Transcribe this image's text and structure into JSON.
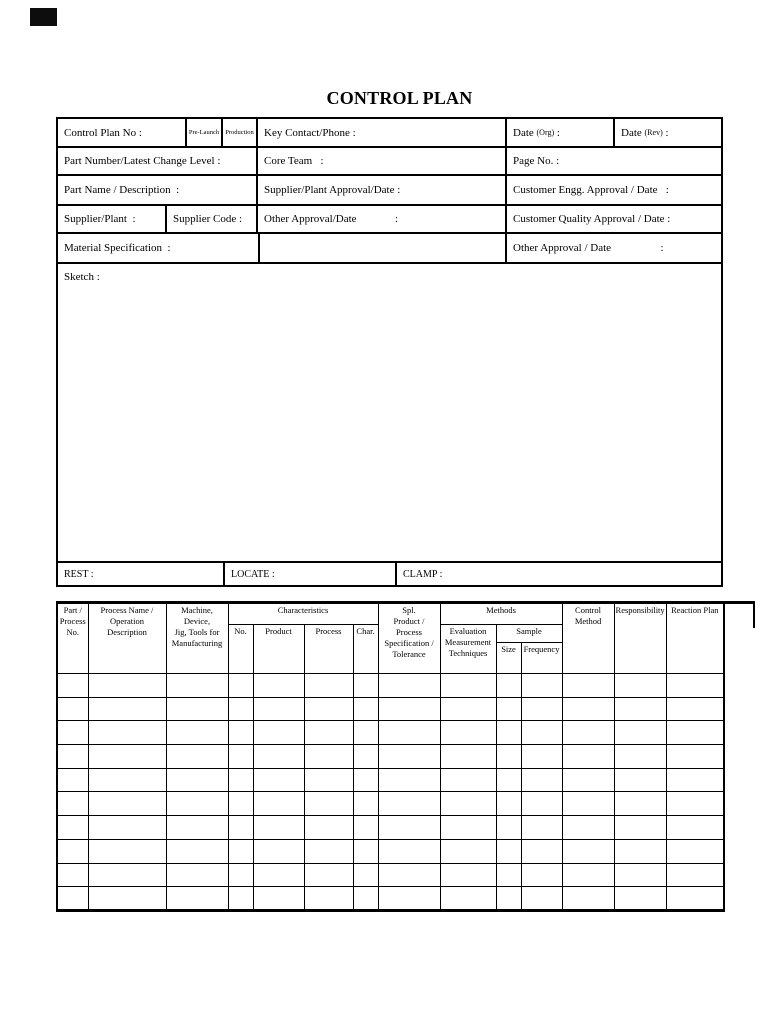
{
  "title": "CONTROL PLAN",
  "colors": {
    "ink": "#000000",
    "paper": "#ffffff"
  },
  "form": {
    "control_plan_no": "Control Plan No :",
    "pre_launch": "Pre-Launch",
    "production": "Production",
    "key_contact": "Key Contact/Phone :",
    "date_org": {
      "text": "Date ",
      "small": "(Org)",
      "colon": " :"
    },
    "date_rev": {
      "text": "Date ",
      "small": "(Rev)",
      "colon": " :"
    },
    "part_number": "Part Number/Latest Change Level :",
    "core_team": "Core Team   :",
    "page_no": "Page No. :",
    "part_name": "Part Name / Description  :",
    "supplier_plant_approval": "Supplier/Plant Approval/Date :",
    "customer_engg_approval": "Customer Engg. Approval / Date   :",
    "supplier_plant": "Supplier/Plant  :",
    "supplier_code": "Supplier Code :",
    "other_approval_date": "Other Approval/Date              :",
    "customer_quality_approval": "Customer Quality Approval / Date :",
    "material_specification": "Material Specification  :",
    "other_approval_date2": "Other Approval / Date                  :",
    "sketch": "Sketch :"
  },
  "rest_row": {
    "rest": "REST :",
    "locate": "LOCATE :",
    "clamp": "CLAMP :"
  },
  "main_table": {
    "headers": {
      "part_process_no": "Part /\nProcess\nNo.",
      "process_name": "Process Name /\nOperation Description",
      "machine": "Machine, Device,\nJig, Tools for\nManufacturing",
      "characteristics": "Characteristics",
      "no": "No.",
      "product": "Product",
      "process": "Process",
      "char": "Char.",
      "spl": "Spl.\nProduct / Process\nSpecification /\nTolerance",
      "methods": "Methods",
      "evaluation": "Evaluation\nMeasurement\nTechniques",
      "sample": "Sample",
      "size": "Size",
      "frequency": "Frequency",
      "control_method": "Control\nMethod",
      "responsibility": "Responsibility",
      "reaction_plan": "Reaction Plan"
    },
    "rows": [
      [
        "",
        "",
        "",
        "",
        "",
        "",
        "",
        "",
        "",
        "",
        "",
        "",
        "",
        ""
      ],
      [
        "",
        "",
        "",
        "",
        "",
        "",
        "",
        "",
        "",
        "",
        "",
        "",
        "",
        ""
      ],
      [
        "",
        "",
        "",
        "",
        "",
        "",
        "",
        "",
        "",
        "",
        "",
        "",
        "",
        ""
      ],
      [
        "",
        "",
        "",
        "",
        "",
        "",
        "",
        "",
        "",
        "",
        "",
        "",
        "",
        ""
      ],
      [
        "",
        "",
        "",
        "",
        "",
        "",
        "",
        "",
        "",
        "",
        "",
        "",
        "",
        ""
      ],
      [
        "",
        "",
        "",
        "",
        "",
        "",
        "",
        "",
        "",
        "",
        "",
        "",
        "",
        ""
      ],
      [
        "",
        "",
        "",
        "",
        "",
        "",
        "",
        "",
        "",
        "",
        "",
        "",
        "",
        ""
      ],
      [
        "",
        "",
        "",
        "",
        "",
        "",
        "",
        "",
        "",
        "",
        "",
        "",
        "",
        ""
      ],
      [
        "",
        "",
        "",
        "",
        "",
        "",
        "",
        "",
        "",
        "",
        "",
        "",
        "",
        ""
      ],
      [
        "",
        "",
        "",
        "",
        "",
        "",
        "",
        "",
        "",
        "",
        "",
        "",
        "",
        ""
      ]
    ]
  }
}
